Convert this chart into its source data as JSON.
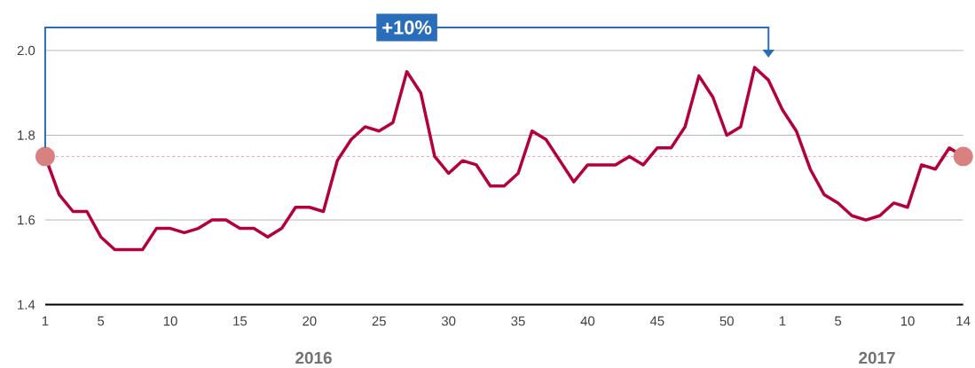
{
  "chart_data": {
    "type": "line",
    "categories": [
      "1",
      null,
      null,
      null,
      "5",
      null,
      null,
      null,
      null,
      "10",
      null,
      null,
      null,
      null,
      "15",
      null,
      null,
      null,
      null,
      "20",
      null,
      null,
      null,
      null,
      "25",
      null,
      null,
      null,
      null,
      "30",
      null,
      null,
      null,
      null,
      "35",
      null,
      null,
      null,
      null,
      "40",
      null,
      null,
      null,
      null,
      "45",
      null,
      null,
      null,
      null,
      "50",
      null,
      null,
      null,
      "1",
      null,
      null,
      null,
      "5",
      null,
      null,
      null,
      null,
      "10",
      null,
      null,
      null,
      "14"
    ],
    "series": [
      {
        "color": "#b3003b",
        "values": [
          1.75,
          1.66,
          1.62,
          1.62,
          1.56,
          1.53,
          1.53,
          1.53,
          1.58,
          1.58,
          1.57,
          1.58,
          1.6,
          1.6,
          1.58,
          1.58,
          1.56,
          1.58,
          1.63,
          1.63,
          1.62,
          1.74,
          1.79,
          1.82,
          1.81,
          1.83,
          1.95,
          1.9,
          1.75,
          1.71,
          1.74,
          1.73,
          1.68,
          1.68,
          1.71,
          1.81,
          1.79,
          1.74,
          1.69,
          1.73,
          1.73,
          1.73,
          1.75,
          1.73,
          1.77,
          1.77,
          1.82,
          1.94,
          1.89,
          1.8,
          1.82,
          1.96,
          1.93,
          1.86,
          1.81,
          1.72,
          1.66,
          1.64,
          1.61,
          1.6,
          1.61,
          1.64,
          1.63,
          1.73,
          1.72,
          1.77,
          1.75
        ]
      }
    ],
    "ylim": [
      1.4,
      2.0
    ],
    "yticks": [
      1.4,
      1.6,
      1.8,
      {
        "value": 2.0,
        "label": "2.0"
      }
    ],
    "grid": "y",
    "line_style": "solid",
    "ref_lines": [
      {
        "axis": "y",
        "value": 1.75,
        "color": "#e8a0a0",
        "line_style": "dashed"
      }
    ],
    "annotations": [
      "+10%",
      "2016",
      "2017"
    ]
  }
}
